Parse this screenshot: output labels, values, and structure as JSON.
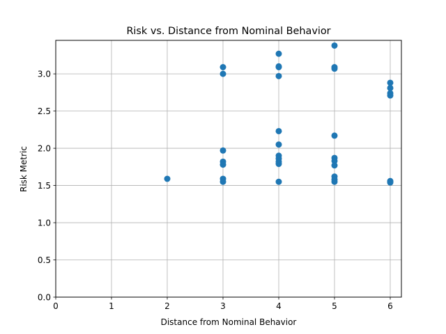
{
  "chart_data": {
    "type": "scatter",
    "title": "Risk vs. Distance from Nominal Behavior",
    "xlabel": "Distance from Nominal Behavior",
    "ylabel": "Risk Metric",
    "xlim": [
      0,
      6.2
    ],
    "ylim": [
      0,
      3.45
    ],
    "xticks": [
      0,
      1,
      2,
      3,
      4,
      5,
      6
    ],
    "yticks": [
      0.0,
      0.5,
      1.0,
      1.5,
      2.0,
      2.5,
      3.0
    ],
    "xtick_labels": [
      "0",
      "1",
      "2",
      "3",
      "4",
      "5",
      "6"
    ],
    "ytick_labels": [
      "0.0",
      "0.5",
      "1.0",
      "1.5",
      "2.0",
      "2.5",
      "3.0"
    ],
    "grid": true,
    "marker_color": "#1f77b4",
    "points": [
      {
        "x": 2,
        "y": 1.59
      },
      {
        "x": 3,
        "y": 3.09
      },
      {
        "x": 3,
        "y": 3.0
      },
      {
        "x": 3,
        "y": 1.97
      },
      {
        "x": 3,
        "y": 1.82
      },
      {
        "x": 3,
        "y": 1.78
      },
      {
        "x": 3,
        "y": 1.59
      },
      {
        "x": 3,
        "y": 1.55
      },
      {
        "x": 4,
        "y": 3.27
      },
      {
        "x": 4,
        "y": 3.1
      },
      {
        "x": 4,
        "y": 3.09
      },
      {
        "x": 4,
        "y": 2.97
      },
      {
        "x": 4,
        "y": 2.23
      },
      {
        "x": 4,
        "y": 2.05
      },
      {
        "x": 4,
        "y": 1.9
      },
      {
        "x": 4,
        "y": 1.86
      },
      {
        "x": 4,
        "y": 1.82
      },
      {
        "x": 4,
        "y": 1.79
      },
      {
        "x": 4,
        "y": 1.55
      },
      {
        "x": 5,
        "y": 3.38
      },
      {
        "x": 5,
        "y": 3.09
      },
      {
        "x": 5,
        "y": 3.07
      },
      {
        "x": 5,
        "y": 2.17
      },
      {
        "x": 5,
        "y": 1.87
      },
      {
        "x": 5,
        "y": 1.83
      },
      {
        "x": 5,
        "y": 1.77
      },
      {
        "x": 5,
        "y": 1.62
      },
      {
        "x": 5,
        "y": 1.58
      },
      {
        "x": 5,
        "y": 1.55
      },
      {
        "x": 6,
        "y": 2.88
      },
      {
        "x": 6,
        "y": 2.81
      },
      {
        "x": 6,
        "y": 2.74
      },
      {
        "x": 6,
        "y": 2.71
      },
      {
        "x": 6,
        "y": 1.56
      },
      {
        "x": 6,
        "y": 1.55
      },
      {
        "x": 6,
        "y": 1.54
      }
    ]
  }
}
